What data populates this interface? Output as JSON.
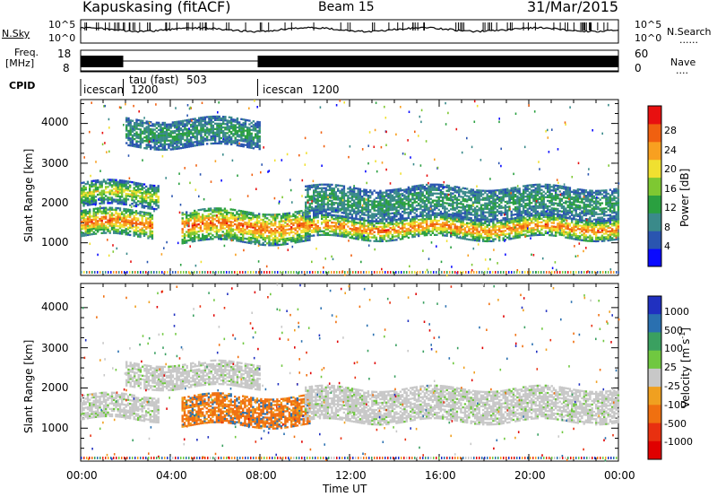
{
  "header": {
    "station": "Kapuskasing (fitACF)",
    "beam": "Beam 15",
    "date": "31/Mar/2015"
  },
  "side_labels": {
    "nsky": "N.Sky",
    "nsearch": "N.Search",
    "freq_line1": "Freq.",
    "freq_line2": "[MHz]",
    "nave": "Nave",
    "cpid": "CPID",
    "dots": "......",
    "dots_short": "...."
  },
  "nsky_axis": {
    "left_ticks": [
      "10^5",
      "10^0"
    ],
    "right_ticks": [
      "10^5",
      "10^0"
    ]
  },
  "freq_axis": {
    "left_ticks": [
      "18",
      "8"
    ],
    "right_ticks": [
      "60",
      "0"
    ]
  },
  "cpid_segments": [
    {
      "label": "icescan",
      "sublabel": "1200",
      "start_hour": 0,
      "end_hour": 1.9
    },
    {
      "label": "tau (fast)",
      "sublabel": "503",
      "start_hour": 1.9,
      "end_hour": 7.9
    },
    {
      "label": "icescan",
      "sublabel": "1200",
      "start_hour": 7.9,
      "end_hour": 24
    }
  ],
  "chart_data": [
    {
      "type": "heatmap",
      "name": "power-panel",
      "ylabel": "Slant Range [km]",
      "xlabel": "",
      "yticks": [
        "1000",
        "2000",
        "3000",
        "4000"
      ],
      "ylim": [
        180,
        4600
      ],
      "xlim": [
        0,
        24
      ],
      "colorbar": {
        "label": "Power [dB]",
        "ticks": [
          "4",
          "8",
          "12",
          "16",
          "20",
          "24",
          "28"
        ],
        "colors": [
          "#0a0aff",
          "#2a55b0",
          "#3a8a8a",
          "#2aa040",
          "#7ec832",
          "#f0e030",
          "#f8a020",
          "#f06010",
          "#e81010"
        ]
      },
      "bands": [
        {
          "start_hour": 0,
          "end_hour": 3.2,
          "range_low": 1150,
          "range_high": 1800,
          "level": "high"
        },
        {
          "start_hour": 0,
          "end_hour": 3.5,
          "range_low": 1900,
          "range_high": 2500,
          "level": "medium"
        },
        {
          "start_hour": 2,
          "end_hour": 8,
          "range_low": 3400,
          "range_high": 4100,
          "level": "low"
        },
        {
          "start_hour": 4.5,
          "end_hour": 10.2,
          "range_low": 1000,
          "range_high": 1800,
          "level": "high"
        },
        {
          "start_hour": 10,
          "end_hour": 24,
          "range_low": 1100,
          "range_high": 1600,
          "level": "high"
        },
        {
          "start_hour": 10,
          "end_hour": 24,
          "range_low": 1600,
          "range_high": 2400,
          "level": "low"
        }
      ]
    },
    {
      "type": "heatmap",
      "name": "velocity-panel",
      "ylabel": "Slant Range [km]",
      "xlabel": "Time UT",
      "yticks": [
        "1000",
        "2000",
        "3000",
        "4000"
      ],
      "ylim": [
        180,
        4600
      ],
      "xlim": [
        0,
        24
      ],
      "xticks": [
        "00:00",
        "04:00",
        "08:00",
        "12:00",
        "16:00",
        "20:00",
        "00:00"
      ],
      "colorbar": {
        "label": "Velocity [m s",
        "label_sup": "-1",
        "label_end": "]",
        "ticks": [
          "1000",
          "500",
          "100",
          "25",
          "-25",
          "-100",
          "-500",
          "-1000"
        ],
        "colors": [
          "#2030c0",
          "#2a70b0",
          "#3aa060",
          "#70c840",
          "#c8c8c8",
          "#f0a020",
          "#f07010",
          "#e83010",
          "#e00000"
        ]
      },
      "bands": [
        {
          "start_hour": 0,
          "end_hour": 3.5,
          "range_low": 1200,
          "range_high": 1800,
          "level": "ground"
        },
        {
          "start_hour": 2,
          "end_hour": 8,
          "range_low": 2000,
          "range_high": 2600,
          "level": "ground"
        },
        {
          "start_hour": 4.5,
          "end_hour": 10.2,
          "range_low": 1050,
          "range_high": 1800,
          "level": "negative"
        },
        {
          "start_hour": 10,
          "end_hour": 24,
          "range_low": 1150,
          "range_high": 2000,
          "level": "ground"
        }
      ]
    }
  ]
}
